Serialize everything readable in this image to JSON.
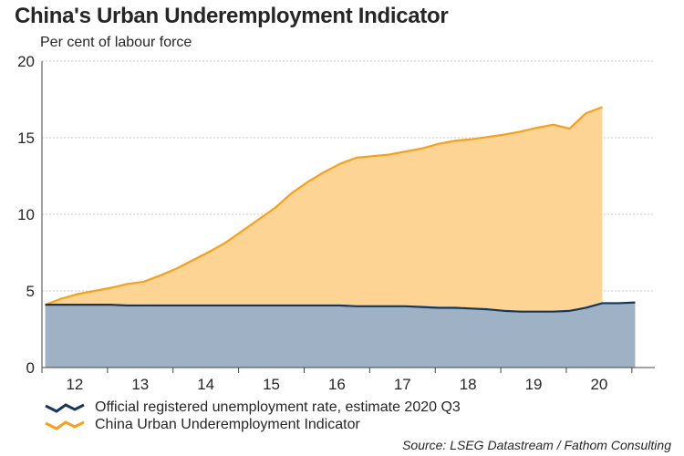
{
  "title": "China's Urban Underemployment Indicator",
  "subtitle": "Per cent of labour force",
  "source": "Source: LSEG Datastream / Fathom Consulting",
  "colors": {
    "official": "#16365c",
    "official_fill": "#9fb1c5",
    "indicator": "#f4a020",
    "indicator_fill": "#fdd494",
    "grid": "#c8c8c8"
  },
  "chart_data": {
    "type": "area",
    "ylim": [
      0,
      20
    ],
    "yticks": [
      0,
      5,
      10,
      15,
      20
    ],
    "xlim": [
      2011.5,
      2020.85
    ],
    "xticks": [
      {
        "value": 2012,
        "label": "12"
      },
      {
        "value": 2013,
        "label": "13"
      },
      {
        "value": 2014,
        "label": "14"
      },
      {
        "value": 2015,
        "label": "15"
      },
      {
        "value": 2016,
        "label": "16"
      },
      {
        "value": 2017,
        "label": "17"
      },
      {
        "value": 2018,
        "label": "18"
      },
      {
        "value": 2019,
        "label": "19"
      },
      {
        "value": 2020,
        "label": "20"
      }
    ],
    "grid": true,
    "legend_position": "bottom",
    "series": [
      {
        "name": "China Urban Underemployment Indicator",
        "x": [
          2011.55,
          2011.8,
          2012.05,
          2012.3,
          2012.55,
          2012.8,
          2013.05,
          2013.3,
          2013.55,
          2013.8,
          2014.05,
          2014.3,
          2014.55,
          2014.8,
          2015.05,
          2015.3,
          2015.55,
          2015.8,
          2016.05,
          2016.3,
          2016.55,
          2016.8,
          2017.05,
          2017.3,
          2017.55,
          2017.8,
          2018.05,
          2018.3,
          2018.55,
          2018.8,
          2019.05,
          2019.3,
          2019.55,
          2019.8,
          2020.05
        ],
        "values": [
          4.1,
          4.5,
          4.8,
          5.0,
          5.2,
          5.45,
          5.6,
          6.0,
          6.45,
          7.0,
          7.55,
          8.15,
          8.9,
          9.65,
          10.4,
          11.35,
          12.1,
          12.75,
          13.3,
          13.7,
          13.8,
          13.9,
          14.1,
          14.3,
          14.6,
          14.8,
          14.9,
          15.05,
          15.2,
          15.4,
          15.65,
          15.85,
          15.6,
          16.6,
          17.0
        ]
      },
      {
        "name": "Official registered unemployment rate, estimate 2020 Q3",
        "x": [
          2011.55,
          2011.8,
          2012.05,
          2012.3,
          2012.55,
          2012.8,
          2013.05,
          2013.3,
          2013.55,
          2013.8,
          2014.05,
          2014.3,
          2014.55,
          2014.8,
          2015.05,
          2015.3,
          2015.55,
          2015.8,
          2016.05,
          2016.3,
          2016.55,
          2016.8,
          2017.05,
          2017.3,
          2017.55,
          2017.8,
          2018.05,
          2018.3,
          2018.55,
          2018.8,
          2019.05,
          2019.3,
          2019.55,
          2019.8,
          2020.05,
          2020.3,
          2020.55
        ],
        "values": [
          4.1,
          4.1,
          4.1,
          4.1,
          4.1,
          4.05,
          4.05,
          4.05,
          4.05,
          4.05,
          4.05,
          4.05,
          4.05,
          4.05,
          4.05,
          4.05,
          4.05,
          4.05,
          4.05,
          4.0,
          4.0,
          4.0,
          4.0,
          3.95,
          3.9,
          3.9,
          3.85,
          3.8,
          3.7,
          3.65,
          3.65,
          3.65,
          3.7,
          3.9,
          4.2,
          4.2,
          4.25
        ]
      }
    ]
  },
  "legend": [
    {
      "label": "Official registered unemployment rate, estimate 2020 Q3"
    },
    {
      "label": "China Urban Underemployment Indicator"
    }
  ]
}
